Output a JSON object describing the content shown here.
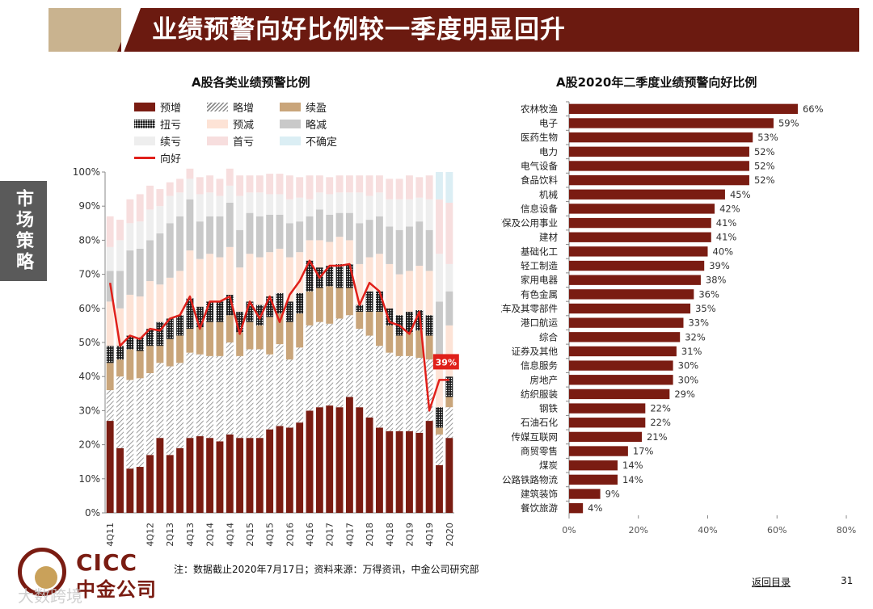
{
  "header": {
    "title": "业绩预警向好比例较一季度明显回升"
  },
  "side_tab": {
    "label": "市场策略"
  },
  "footer": {
    "note": "注：数据截止2020年7月17日；资料来源：万得资讯，中金公司研究部",
    "back_link": "返回目录",
    "page_number": "31",
    "logo_en": "CICC",
    "logo_cn": "中金公司",
    "watermark": "大数跨境"
  },
  "colors": {
    "brand": "#6b1a10",
    "line": "#e0201a",
    "bar_right": "#7a1c12"
  },
  "chart_data": [
    {
      "type": "bar",
      "stacked": true,
      "title": "A股各类业绩预警比例",
      "categories": [
        "4Q11",
        "1Q12",
        "2Q12",
        "3Q12",
        "4Q12",
        "1Q13",
        "2Q13",
        "3Q13",
        "4Q13",
        "1Q14",
        "2Q14",
        "3Q14",
        "4Q14",
        "1Q15",
        "2Q15",
        "3Q15",
        "4Q15",
        "1Q16",
        "2Q16",
        "3Q16",
        "4Q16",
        "1Q17",
        "2Q17",
        "3Q17",
        "4Q17",
        "1Q18",
        "2Q18",
        "3Q18",
        "4Q18",
        "1Q19",
        "2Q19",
        "3Q19",
        "4Q19",
        "1Q20",
        "2Q20"
      ],
      "tick_labels": [
        "4Q11",
        "4Q12",
        "2Q13",
        "4Q13",
        "2Q14",
        "4Q14",
        "2Q15",
        "4Q15",
        "2Q16",
        "4Q16",
        "2Q17",
        "4Q17",
        "2Q18",
        "4Q18",
        "2Q19",
        "4Q19",
        "2Q20"
      ],
      "legend": [
        "预增",
        "略增",
        "续盈",
        "扭亏",
        "预减",
        "略减",
        "续亏",
        "首亏",
        "不确定",
        "向好"
      ],
      "series": [
        {
          "name": "预增",
          "color": "#7a1c12",
          "values": [
            27,
            19,
            13,
            13.5,
            17,
            22,
            17,
            19,
            22,
            22.5,
            22,
            21,
            23,
            22,
            22,
            22,
            24.5,
            25.5,
            25,
            26.5,
            30,
            31,
            31.5,
            31,
            34,
            31,
            28,
            25,
            24,
            24,
            24,
            23.5,
            27,
            14,
            22
          ]
        },
        {
          "name": "略增",
          "color": "#9a9a9a",
          "pattern": "hatch",
          "values": [
            9,
            21,
            26,
            26,
            24,
            22,
            26,
            25,
            25,
            24,
            24,
            25,
            27,
            24,
            26,
            26,
            22,
            24,
            20,
            22,
            25,
            25,
            24,
            26,
            24,
            23,
            24,
            24,
            23,
            22,
            22,
            22,
            18,
            9,
            9
          ]
        },
        {
          "name": "续盈",
          "color": "#c9a57a",
          "values": [
            8,
            5,
            9,
            8,
            8,
            5,
            8,
            8,
            7,
            8,
            10,
            10,
            8,
            7,
            8,
            7,
            11,
            9,
            11,
            10,
            10,
            10,
            11,
            9,
            8,
            5,
            7,
            10,
            8,
            6,
            7,
            8,
            7,
            2,
            3
          ]
        },
        {
          "name": "扭亏",
          "color": "#1c1c1c",
          "pattern": "dots",
          "values": [
            5,
            4,
            4,
            4,
            5,
            7,
            6,
            6,
            9,
            6,
            6,
            6,
            6,
            6,
            6,
            6,
            6,
            6,
            6,
            6,
            9,
            6,
            6,
            7,
            7,
            2,
            6,
            6,
            5,
            6,
            6,
            6,
            6,
            6,
            6
          ]
        },
        {
          "name": "预减",
          "color": "#fde3d6",
          "values": [
            13,
            11,
            12,
            12,
            14,
            11,
            12,
            13,
            14,
            14,
            14,
            13,
            14,
            13,
            14,
            14,
            13,
            13,
            13,
            12,
            6,
            8,
            7,
            8,
            7,
            12,
            10,
            11,
            13,
            12,
            12,
            13,
            13,
            15,
            15
          ]
        },
        {
          "name": "略减",
          "color": "#c9c9c9",
          "values": [
            9,
            11,
            13,
            14,
            12,
            15,
            16,
            16,
            15,
            11,
            11,
            12,
            13,
            11,
            12,
            12,
            11,
            10,
            10,
            9,
            7,
            9,
            8,
            7,
            8,
            12,
            11,
            11,
            11,
            13,
            13,
            13,
            12,
            16,
            10
          ]
        },
        {
          "name": "续亏",
          "color": "#eeeeee",
          "values": [
            7,
            9,
            8,
            8,
            9,
            8,
            8,
            7,
            6,
            8,
            7,
            6,
            5,
            10,
            6,
            7,
            6,
            6,
            7,
            7,
            5,
            5,
            6,
            6,
            6,
            9,
            7,
            7,
            8,
            9,
            8,
            7,
            9,
            14,
            8
          ]
        },
        {
          "name": "首亏",
          "color": "#f7dede",
          "values": [
            9,
            6,
            7,
            8,
            7,
            5,
            4,
            4,
            3,
            5,
            5,
            5,
            5,
            6,
            5,
            5,
            6,
            6,
            7,
            6,
            7,
            5,
            5,
            5,
            5,
            5,
            6,
            5,
            6,
            6,
            7,
            6,
            7,
            16,
            18
          ]
        },
        {
          "name": "不确定",
          "color": "#dbeef4",
          "values": [
            0,
            0,
            0,
            0,
            0,
            0,
            0,
            0,
            0,
            0,
            0,
            0,
            0,
            0,
            0,
            0,
            0,
            0,
            0,
            0,
            0,
            0,
            0,
            0,
            0,
            0,
            0,
            0,
            0,
            0,
            0,
            0,
            0,
            8,
            9
          ]
        }
      ],
      "line": {
        "name": "向好",
        "color": "#e0201a",
        "values": [
          67.5,
          49,
          52,
          51,
          54,
          53.5,
          57,
          58,
          63.5,
          54,
          62,
          62,
          63.5,
          52.5,
          62,
          57,
          63.5,
          56,
          64,
          68,
          74,
          69,
          72.5,
          72.5,
          73,
          61,
          67.5,
          65,
          56,
          55,
          52.5,
          59,
          30,
          39,
          39
        ]
      },
      "last_label": "39%",
      "ylim": [
        0,
        100
      ],
      "yticks": [
        "0%",
        "10%",
        "20%",
        "30%",
        "40%",
        "50%",
        "60%",
        "70%",
        "80%",
        "90%",
        "100%"
      ]
    },
    {
      "type": "bar",
      "orientation": "horizontal",
      "title": "A股2020年二季度业绩预警向好比例",
      "categories": [
        "农林牧渔",
        "电子",
        "医药生物",
        "电力",
        "电气设备",
        "食品饮料",
        "机械",
        "信息设备",
        "环保及公用事业",
        "建材",
        "基础化工",
        "轻工制造",
        "家用电器",
        "有色金属",
        "汽车及其零部件",
        "港口航运",
        "综合",
        "证券及其他",
        "信息服务",
        "房地产",
        "纺织服装",
        "钢铁",
        "石油石化",
        "传媒互联网",
        "商贸零售",
        "煤炭",
        "公路铁路物流",
        "建筑装饰",
        "餐饮旅游"
      ],
      "values": [
        66,
        59,
        53,
        52,
        52,
        52,
        45,
        42,
        41,
        41,
        40,
        39,
        38,
        36,
        35,
        33,
        32,
        31,
        30,
        30,
        29,
        22,
        22,
        21,
        17,
        14,
        14,
        9,
        4
      ],
      "value_labels": [
        "66%",
        "59%",
        "53%",
        "52%",
        "52%",
        "52%",
        "45%",
        "42%",
        "41%",
        "41%",
        "40%",
        "39%",
        "38%",
        "36%",
        "35%",
        "33%",
        "32%",
        "31%",
        "30%",
        "30%",
        "29%",
        "22%",
        "22%",
        "21%",
        "17%",
        "14%",
        "14%",
        "9%",
        "4%"
      ],
      "xlim": [
        0,
        80
      ],
      "xticks": [
        "0%",
        "20%",
        "40%",
        "60%",
        "80%"
      ]
    }
  ]
}
